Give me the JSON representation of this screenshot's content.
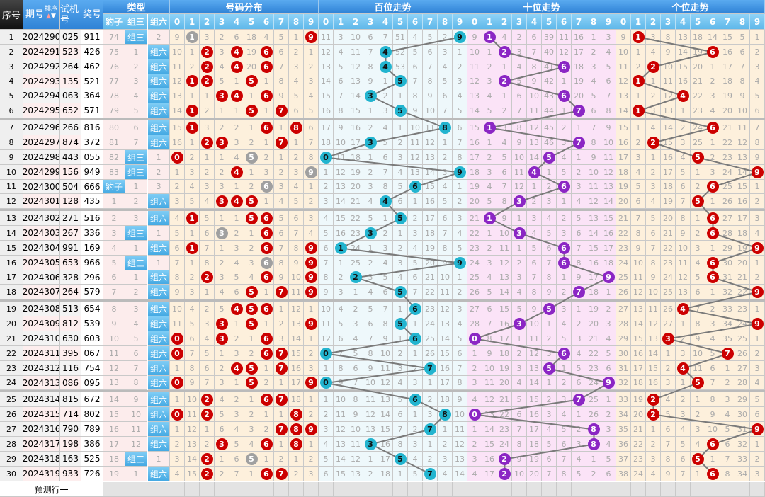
{
  "header": {
    "seq": "序号",
    "issue": "期号",
    "sort": "排序",
    "trial": "试机号",
    "draw": "奖号",
    "type": "类型",
    "type_cols": [
      "豹子",
      "组三",
      "组六"
    ],
    "distribution": "号码分布",
    "hundreds": "百位走势",
    "tens": "十位走势",
    "units": "个位走势",
    "digits": [
      "0",
      "1",
      "2",
      "3",
      "4",
      "5",
      "6",
      "7",
      "8",
      "9"
    ]
  },
  "rows": [
    {
      "seq": "1",
      "issue": "2024290",
      "trial": "025",
      "draw": "911"
    },
    {
      "seq": "2",
      "issue": "2024291",
      "trial": "523",
      "draw": "426"
    },
    {
      "seq": "3",
      "issue": "2024292",
      "trial": "264",
      "draw": "462"
    },
    {
      "seq": "4",
      "issue": "2024293",
      "trial": "135",
      "draw": "521"
    },
    {
      "seq": "5",
      "issue": "2024294",
      "trial": "063",
      "draw": "364"
    },
    {
      "seq": "6",
      "issue": "2024295",
      "trial": "652",
      "draw": "571"
    },
    {
      "seq": "7",
      "issue": "2024296",
      "trial": "266",
      "draw": "816"
    },
    {
      "seq": "8",
      "issue": "2024297",
      "trial": "874",
      "draw": "372"
    },
    {
      "seq": "9",
      "issue": "2024298",
      "trial": "443",
      "draw": "055"
    },
    {
      "seq": "10",
      "issue": "2024299",
      "trial": "156",
      "draw": "949"
    },
    {
      "seq": "11",
      "issue": "2024300",
      "trial": "504",
      "draw": "666"
    },
    {
      "seq": "12",
      "issue": "2024301",
      "trial": "128",
      "draw": "435"
    },
    {
      "seq": "13",
      "issue": "2024302",
      "trial": "271",
      "draw": "516"
    },
    {
      "seq": "14",
      "issue": "2024303",
      "trial": "267",
      "draw": "336"
    },
    {
      "seq": "15",
      "issue": "2024304",
      "trial": "991",
      "draw": "169"
    },
    {
      "seq": "16",
      "issue": "2024305",
      "trial": "653",
      "draw": "966"
    },
    {
      "seq": "17",
      "issue": "2024306",
      "trial": "328",
      "draw": "296"
    },
    {
      "seq": "18",
      "issue": "2024307",
      "trial": "264",
      "draw": "579"
    },
    {
      "seq": "19",
      "issue": "2024308",
      "trial": "513",
      "draw": "654"
    },
    {
      "seq": "20",
      "issue": "2024309",
      "trial": "812",
      "draw": "539"
    },
    {
      "seq": "21",
      "issue": "2024310",
      "trial": "630",
      "draw": "603"
    },
    {
      "seq": "22",
      "issue": "2024311",
      "trial": "395",
      "draw": "067"
    },
    {
      "seq": "23",
      "issue": "2024312",
      "trial": "116",
      "draw": "754"
    },
    {
      "seq": "24",
      "issue": "2024313",
      "trial": "086",
      "draw": "095"
    },
    {
      "seq": "25",
      "issue": "2024314",
      "trial": "815",
      "draw": "672"
    },
    {
      "seq": "26",
      "issue": "2024315",
      "trial": "714",
      "draw": "802"
    },
    {
      "seq": "27",
      "issue": "2024316",
      "trial": "790",
      "draw": "789"
    },
    {
      "seq": "28",
      "issue": "2024317",
      "trial": "198",
      "draw": "386"
    },
    {
      "seq": "29",
      "issue": "2024318",
      "trial": "163",
      "draw": "525"
    },
    {
      "seq": "30",
      "issue": "2024319",
      "trial": "933",
      "draw": "726"
    }
  ],
  "first_row_misses": {
    "type": [
      74,
      0,
      2
    ],
    "distribution": [
      9,
      0,
      3,
      2,
      6,
      18,
      4,
      5,
      1,
      0
    ],
    "hundreds": [
      11,
      3,
      10,
      6,
      7,
      51,
      4,
      5,
      2,
      0
    ],
    "tens": [
      9,
      0,
      4,
      2,
      6,
      39,
      11,
      16,
      1,
      3
    ],
    "units": [
      9,
      0,
      3,
      8,
      13,
      18,
      14,
      15,
      5,
      1
    ]
  },
  "predict_label": "预测行一",
  "colors": {
    "dist_ball": "#cc0000",
    "repeat_ball": "#a0a0a0",
    "hundreds_ball": "#22b4cf",
    "tens_ball": "#8b26c4",
    "units_ball": "#cc0000",
    "line": "#7a7a7a"
  }
}
